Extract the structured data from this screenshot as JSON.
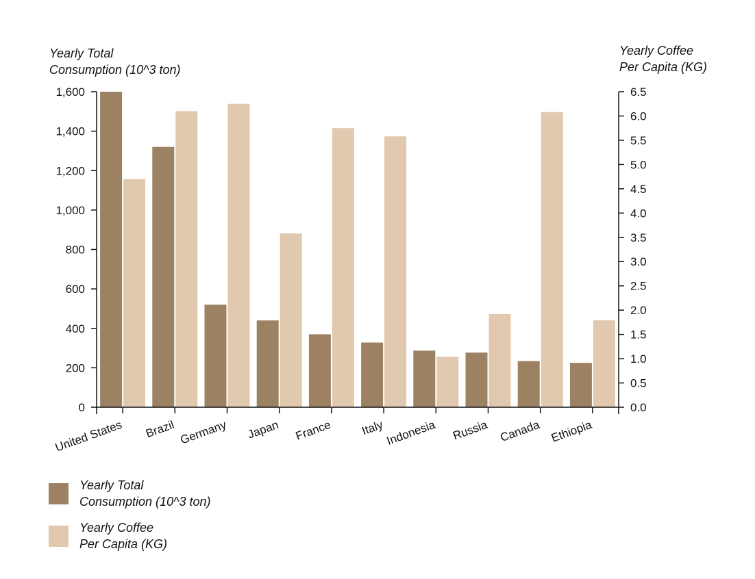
{
  "chart_data": {
    "type": "bar",
    "categories": [
      "United States",
      "Brazil",
      "Germany",
      "Japan",
      "France",
      "Italy",
      "Indonesia",
      "Russia",
      "Canada",
      "Ethiopia"
    ],
    "series": [
      {
        "name": "Yearly Total\nConsumption (10^3 ton)",
        "axis": "left",
        "color": "#9c8163",
        "values": [
          1600,
          1320,
          520,
          440,
          370,
          328,
          287,
          277,
          234,
          225
        ]
      },
      {
        "name": "Yearly Coffee\nPer Capita (KG)",
        "axis": "right",
        "color": "#e0c9af",
        "values": [
          4.7,
          6.1,
          6.25,
          3.58,
          5.75,
          5.58,
          1.04,
          1.92,
          6.08,
          1.79
        ]
      }
    ],
    "y_left": {
      "label": "Yearly Total\nConsumption (10^3 ton)",
      "ylim": [
        0,
        1600
      ],
      "ticks": [
        0,
        200,
        400,
        600,
        800,
        1000,
        1200,
        1400,
        1600
      ],
      "tick_labels": [
        "0",
        "200",
        "400",
        "600",
        "800",
        "1,000",
        "1,200",
        "1,400",
        "1,600"
      ]
    },
    "y_right": {
      "label": "Yearly Coffee\nPer Capita (KG)",
      "ylim": [
        0,
        6.5
      ],
      "ticks": [
        0,
        0.5,
        1,
        1.5,
        2,
        2.5,
        3,
        3.5,
        4,
        4.5,
        5,
        5.5,
        6,
        6.5
      ],
      "tick_labels": [
        "0.0",
        "0.5",
        "1.0",
        "1.5",
        "2.0",
        "2.5",
        "3.0",
        "3.5",
        "4.0",
        "4.5",
        "5.0",
        "5.5",
        "6.0",
        "6.5"
      ]
    },
    "grid": false,
    "legend_position": "bottom-left"
  }
}
